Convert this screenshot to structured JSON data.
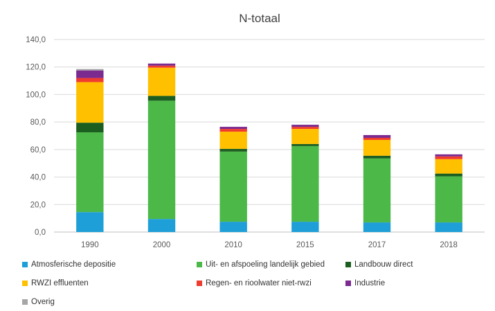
{
  "chart_data": {
    "type": "bar",
    "stacked": true,
    "title": "N-totaal",
    "xlabel": "",
    "ylabel": "",
    "ylim": [
      0,
      140
    ],
    "yticks": [
      "0,0",
      "20,0",
      "40,0",
      "60,0",
      "80,0",
      "100,0",
      "120,0",
      "140,0"
    ],
    "grid": true,
    "legend_position": "bottom",
    "categories": [
      "1990",
      "2000",
      "2010",
      "2015",
      "2017",
      "2018"
    ],
    "series": [
      {
        "name": "Atmosferische depositie",
        "color": "#1f9fd8",
        "values": [
          14.5,
          9.5,
          7.5,
          7.5,
          7.0,
          7.0
        ]
      },
      {
        "name": "Uit- en afspoeling landelijk gebied",
        "color": "#4cb848",
        "values": [
          58.0,
          86.0,
          51.0,
          55.0,
          46.5,
          33.5
        ]
      },
      {
        "name": "Landbouw direct",
        "color": "#1b5e20",
        "values": [
          7.0,
          3.5,
          2.0,
          1.5,
          2.0,
          2.0
        ]
      },
      {
        "name": "RWZI effluenten",
        "color": "#ffc000",
        "values": [
          29.5,
          20.5,
          12.5,
          11.0,
          11.5,
          10.5
        ]
      },
      {
        "name": "Regen- en rioolwater niet-rwzi",
        "color": "#f03c2e",
        "values": [
          3.0,
          1.5,
          2.0,
          1.5,
          1.5,
          2.0
        ]
      },
      {
        "name": "Industrie",
        "color": "#7b2a8f",
        "values": [
          5.5,
          1.5,
          1.5,
          1.5,
          2.0,
          1.5
        ]
      },
      {
        "name": "Overig",
        "color": "#a6a6a6",
        "values": [
          1.0,
          0.0,
          0.0,
          0.0,
          0.0,
          0.0
        ]
      }
    ]
  }
}
